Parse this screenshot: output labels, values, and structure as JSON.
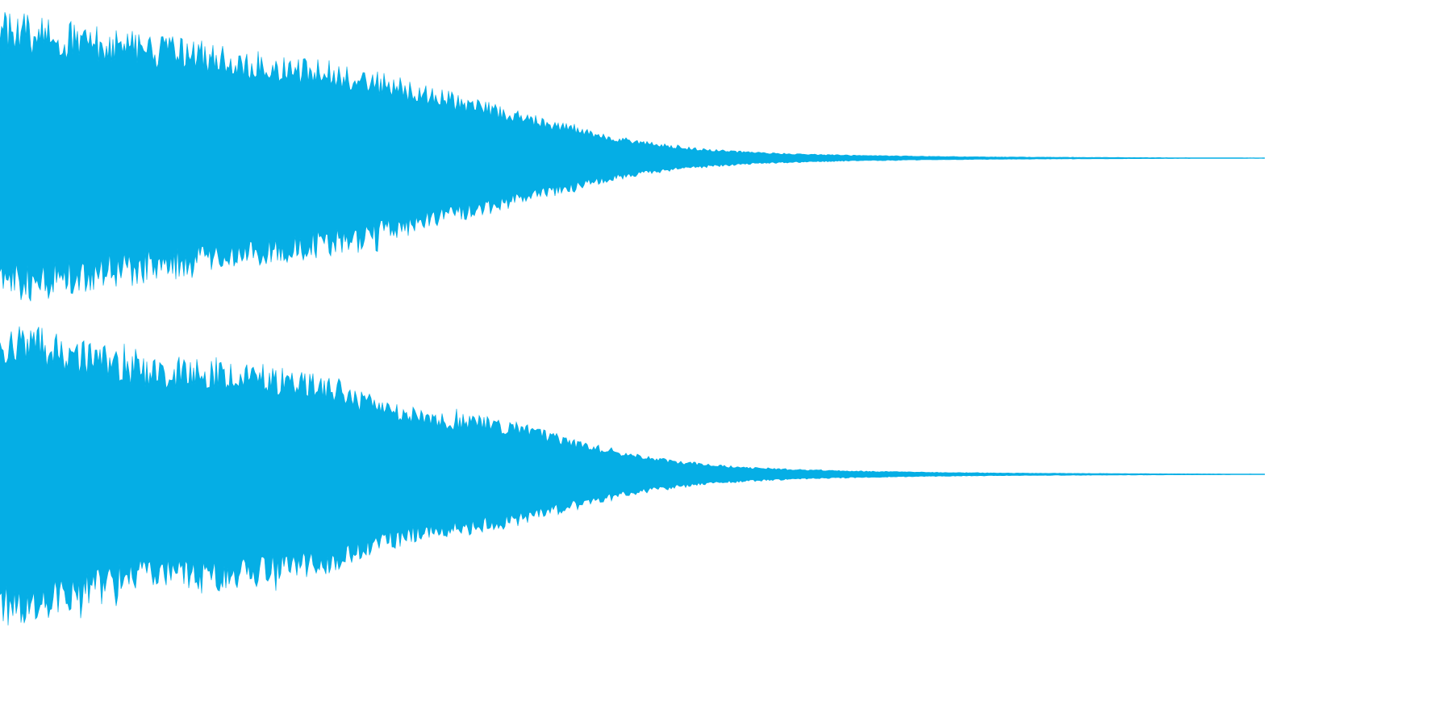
{
  "waveform": {
    "color": "#05aee5",
    "background": "#ffffff",
    "channels": [
      {
        "name": "",
        "envelope": [
          0.98,
          0.96,
          0.92,
          0.88,
          0.86,
          0.82,
          0.8,
          0.76,
          0.72,
          0.7,
          0.66,
          0.62,
          0.56,
          0.5,
          0.44,
          0.38,
          0.32,
          0.26,
          0.2,
          0.15,
          0.11,
          0.08,
          0.06,
          0.045,
          0.035,
          0.028,
          0.022,
          0.018,
          0.015,
          0.012,
          0.01,
          0.008,
          0.007,
          0.006,
          0.005,
          0.004,
          0.0035,
          0.003,
          0.0025,
          0.002
        ]
      },
      {
        "name": "",
        "envelope": [
          1.0,
          0.97,
          0.93,
          0.86,
          0.78,
          0.76,
          0.78,
          0.77,
          0.74,
          0.7,
          0.66,
          0.58,
          0.5,
          0.44,
          0.4,
          0.38,
          0.34,
          0.28,
          0.22,
          0.16,
          0.12,
          0.09,
          0.065,
          0.05,
          0.04,
          0.032,
          0.026,
          0.021,
          0.017,
          0.014,
          0.011,
          0.009,
          0.008,
          0.007,
          0.006,
          0.005,
          0.004,
          0.0035,
          0.003,
          0.0025
        ]
      }
    ]
  }
}
